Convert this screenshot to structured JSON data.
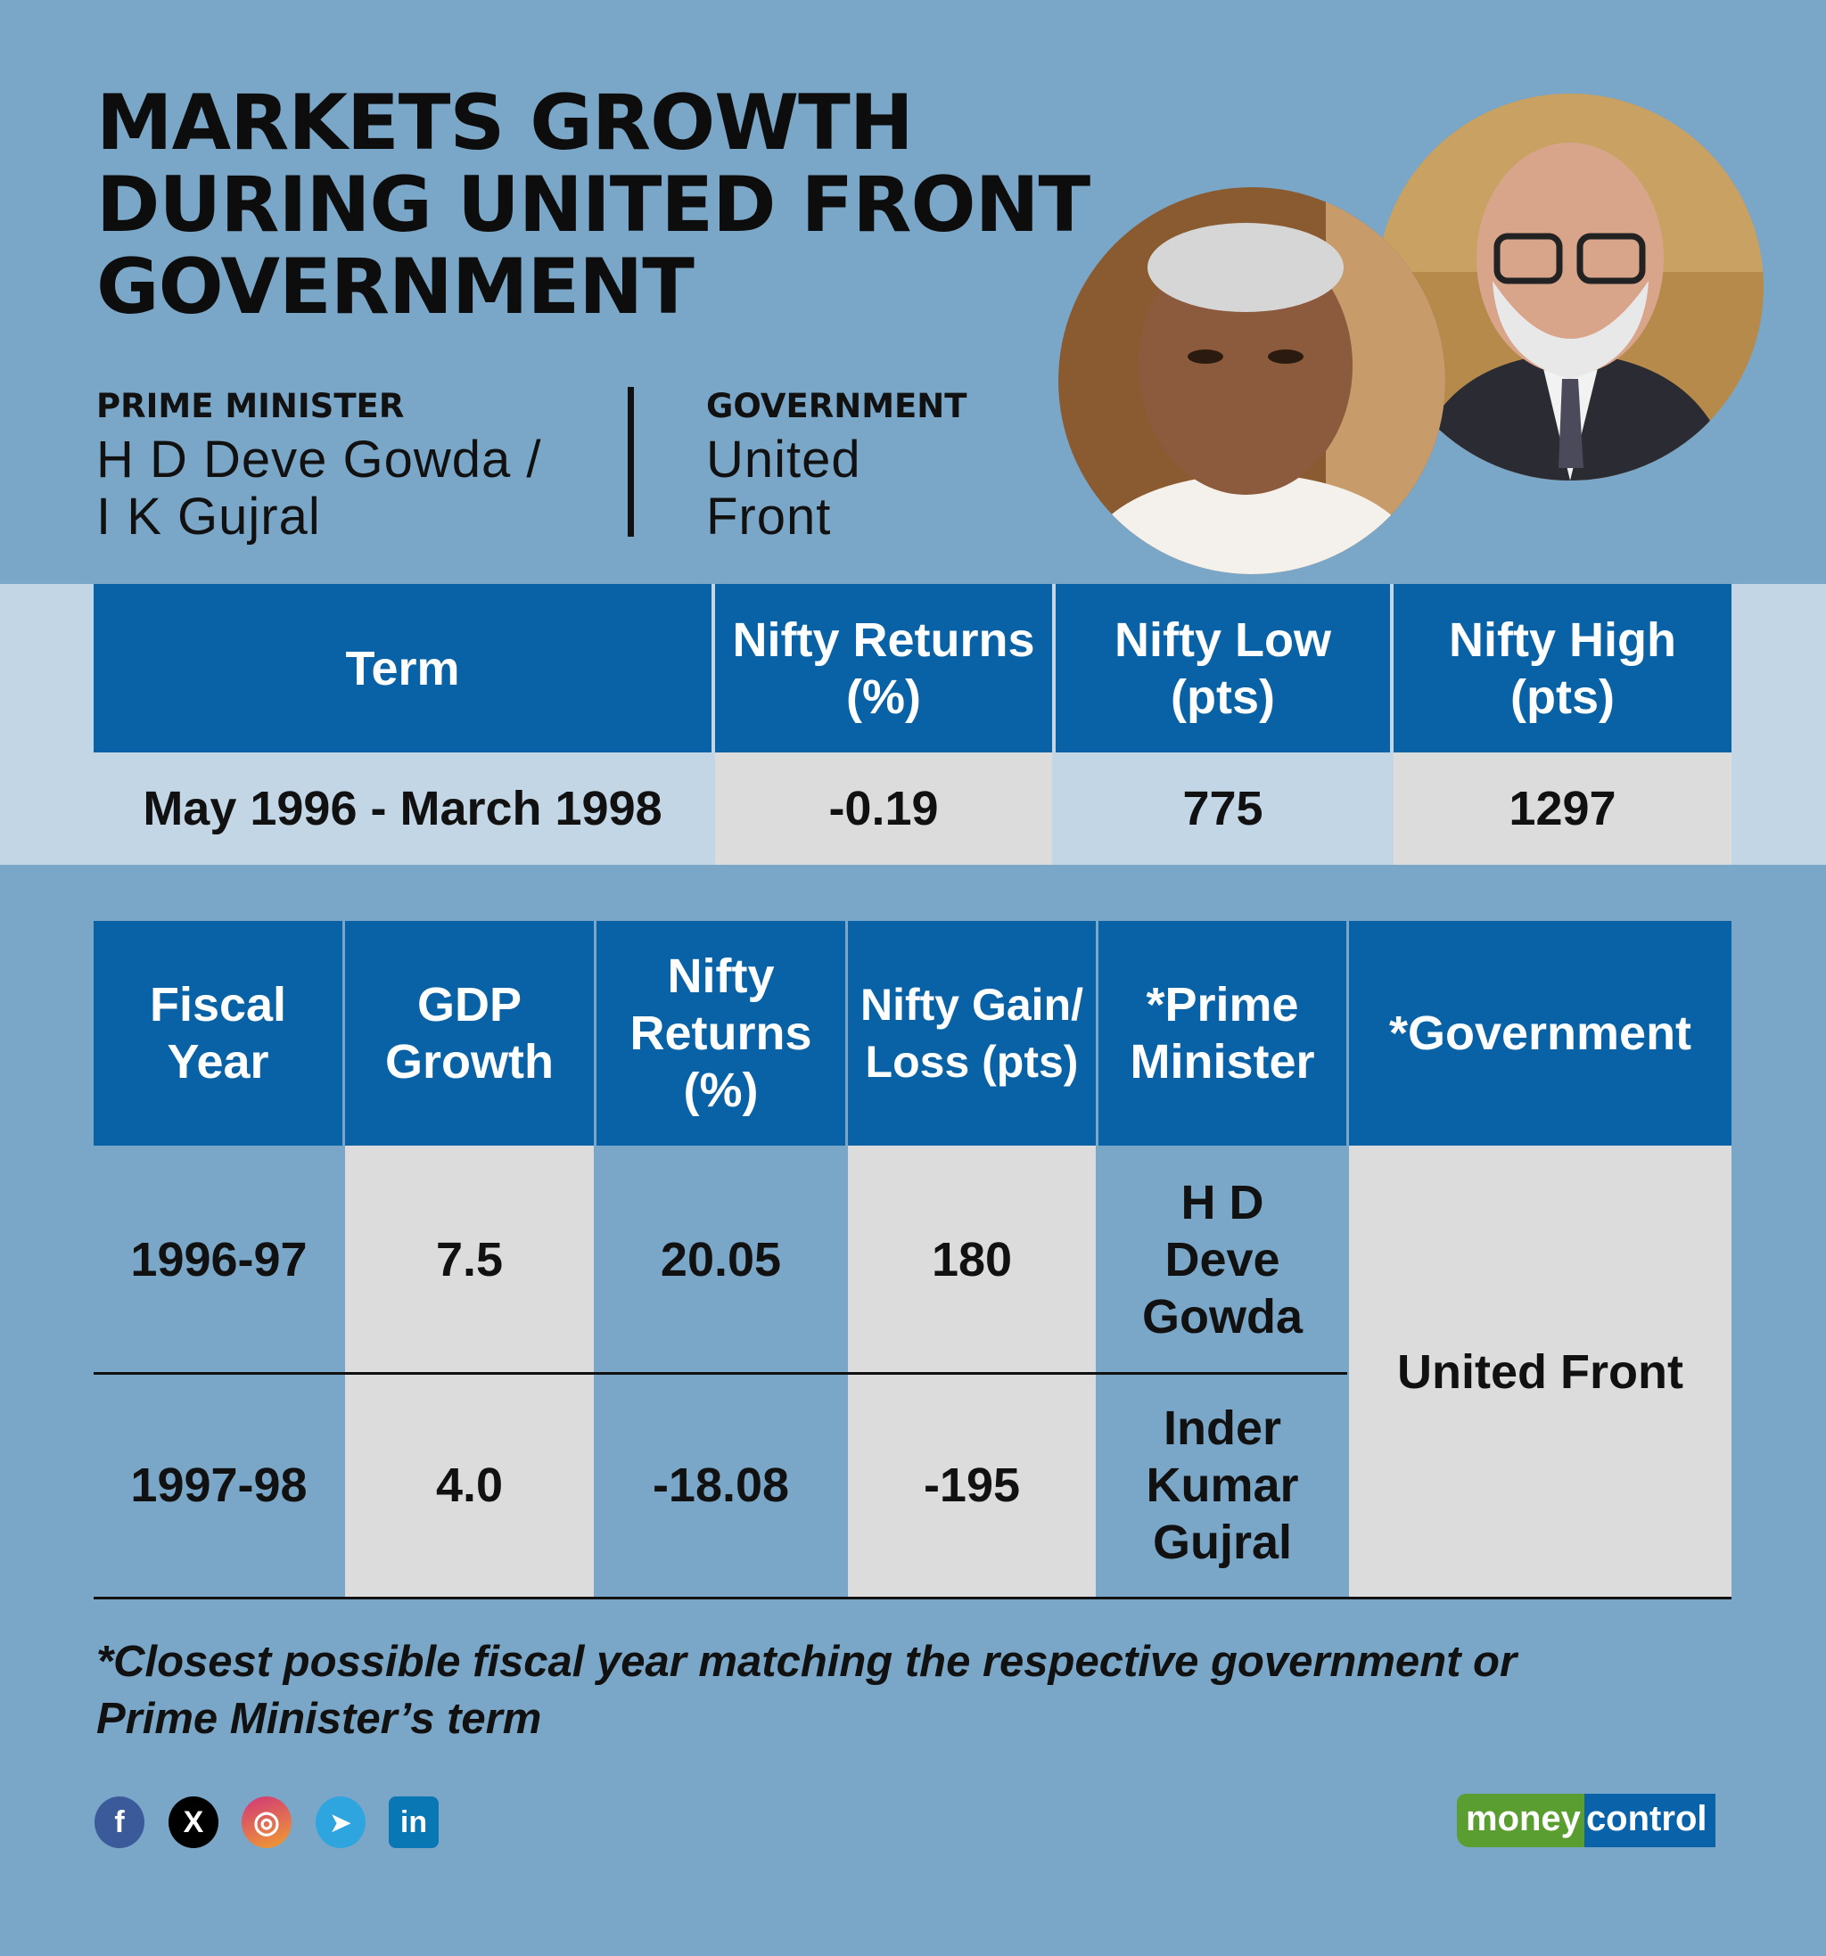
{
  "header": {
    "title_lines": [
      "MARKETS GROWTH",
      "DURING UNITED FRONT",
      "GOVERNMENT"
    ]
  },
  "info": {
    "pm_label": "PRIME MINISTER",
    "pm_lines": [
      "H D Deve Gowda /",
      "I K Gujral"
    ],
    "gov_label": "GOVERNMENT",
    "gov_lines": [
      "United",
      "Front"
    ]
  },
  "summary_table": {
    "headers": [
      "Term",
      "Nifty Returns (%)",
      "Nifty Low (pts)",
      "Nifty High (pts)"
    ],
    "row": [
      "May 1996 - March 1998",
      "-0.19",
      "775",
      "1297"
    ]
  },
  "yearly_table": {
    "headers": [
      "Fiscal Year",
      "GDP Growth",
      "Nifty Returns (%)",
      "Nifty Gain/ Loss (pts)",
      "*Prime Minister",
      "*Government"
    ],
    "rows": [
      {
        "year": "1996-97",
        "gdp": "7.5",
        "returns": "20.05",
        "gain": "180",
        "pm": "H D Deve Gowda"
      },
      {
        "year": "1997-98",
        "gdp": "4.0",
        "returns": "-18.08",
        "gain": "-195",
        "pm": "Inder Kumar Gujral"
      }
    ],
    "government": "United Front"
  },
  "footnote": "*Closest possible fiscal year matching the respective government or Prime Minister’s term",
  "social": {
    "icons": [
      "facebook-icon",
      "x-icon",
      "instagram-icon",
      "telegram-icon",
      "linkedin-icon"
    ],
    "glyphs": [
      "f",
      "X",
      "◎",
      "➤",
      "in"
    ]
  },
  "logo": {
    "part1": "money",
    "part2": "control"
  },
  "colors": {
    "background": "#7aa6c7",
    "header_blue": "#0862a5",
    "cell_grey": "#dcdcdc",
    "logo_green": "#5a9e32"
  }
}
